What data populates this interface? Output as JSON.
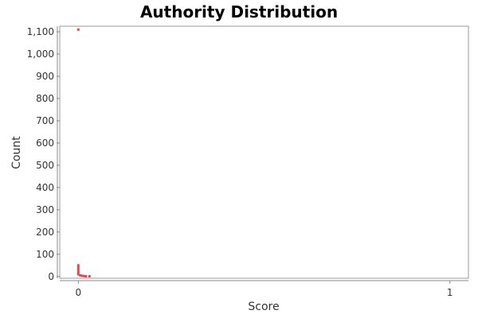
{
  "chart_data": {
    "type": "scatter",
    "title": "Authority Distribution",
    "xlabel": "Score",
    "ylabel": "Count",
    "xlim": [
      -0.05,
      1.05
    ],
    "ylim": [
      -8,
      1125
    ],
    "x_ticks": [
      {
        "value": 0,
        "label": "0"
      },
      {
        "value": 1,
        "label": "1"
      }
    ],
    "y_ticks": [
      {
        "value": 0,
        "label": "0"
      },
      {
        "value": 100,
        "label": "100"
      },
      {
        "value": 200,
        "label": "200"
      },
      {
        "value": 300,
        "label": "300"
      },
      {
        "value": 400,
        "label": "400"
      },
      {
        "value": 500,
        "label": "500"
      },
      {
        "value": 600,
        "label": "600"
      },
      {
        "value": 700,
        "label": "700"
      },
      {
        "value": 800,
        "label": "800"
      },
      {
        "value": 900,
        "label": "900"
      },
      {
        "value": 1000,
        "label": "1,000"
      },
      {
        "value": 1100,
        "label": "1,100"
      }
    ],
    "grid": true,
    "legend": false,
    "series": [
      {
        "color": "#e8474e",
        "points": [
          {
            "x": 0.0,
            "y": 1110
          },
          {
            "x": 0.0,
            "y": 50
          },
          {
            "x": 0.0,
            "y": 40
          },
          {
            "x": 0.0,
            "y": 30
          },
          {
            "x": 0.0,
            "y": 20
          },
          {
            "x": 0.0,
            "y": 10
          },
          {
            "x": 0.005,
            "y": 5
          },
          {
            "x": 0.01,
            "y": 3
          },
          {
            "x": 0.015,
            "y": 2
          },
          {
            "x": 0.02,
            "y": 1
          },
          {
            "x": 0.03,
            "y": 1
          }
        ]
      }
    ]
  }
}
